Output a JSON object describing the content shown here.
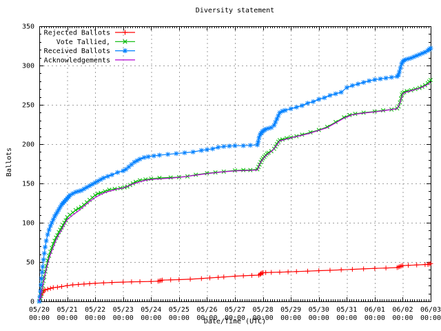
{
  "chart_data": {
    "type": "line",
    "title": "Diversity statement",
    "xlabel": "Date/Time (UTC)",
    "ylabel": "Ballots",
    "ylim": [
      0,
      350
    ],
    "grid": true,
    "legend_position": "top-left",
    "x_unit": "days since 05/20 00:00",
    "x_ticks": [
      {
        "date": "05/20",
        "time": "00:00"
      },
      {
        "date": "05/21",
        "time": "00:00"
      },
      {
        "date": "05/22",
        "time": "00:00"
      },
      {
        "date": "05/23",
        "time": "00:00"
      },
      {
        "date": "05/24",
        "time": "00:00"
      },
      {
        "date": "05/25",
        "time": "00:00"
      },
      {
        "date": "05/26",
        "time": "00:00"
      },
      {
        "date": "05/27",
        "time": "00:00"
      },
      {
        "date": "05/28",
        "time": "00:00"
      },
      {
        "date": "05/29",
        "time": "00:00"
      },
      {
        "date": "05/30",
        "time": "00:00"
      },
      {
        "date": "05/31",
        "time": "00:00"
      },
      {
        "date": "06/01",
        "time": "00:00"
      },
      {
        "date": "06/02",
        "time": "00:00"
      },
      {
        "date": "06/03",
        "time": "00:00"
      }
    ],
    "y_ticks": [
      0,
      50,
      100,
      150,
      200,
      250,
      300,
      350
    ],
    "colors": {
      "rejected": "#ff0000",
      "tallied": "#00b800",
      "received": "#0080ff",
      "acknowledgements": "#b400d3",
      "grid": "#9e9e9e",
      "axis": "#000000"
    },
    "series": [
      {
        "name": "Rejected Ballots",
        "color": "#ff0000",
        "marker": "plus",
        "x": [
          0,
          0.02,
          0.05,
          0.08,
          0.12,
          0.16,
          0.2,
          0.3,
          0.4,
          0.5,
          0.65,
          0.8,
          1.0,
          1.2,
          1.4,
          1.6,
          1.8,
          2.0,
          2.3,
          2.6,
          3.0,
          3.3,
          3.6,
          4.0,
          4.25,
          4.3,
          4.35,
          4.4,
          4.7,
          5.0,
          5.4,
          5.8,
          6.1,
          6.4,
          6.6,
          7.0,
          7.3,
          7.6,
          7.85,
          7.9,
          7.93,
          7.96,
          8.0,
          8.1,
          8.3,
          8.6,
          8.9,
          9.2,
          9.6,
          10.0,
          10.4,
          10.8,
          11.2,
          11.6,
          12.0,
          12.4,
          12.8,
          12.85,
          12.9,
          12.95,
          13.0,
          13.2,
          13.5,
          13.8,
          13.9,
          13.95,
          14.0
        ],
        "y": [
          0,
          2,
          5,
          8,
          11,
          13,
          14.5,
          15.5,
          16.5,
          17.5,
          18,
          18.8,
          20,
          21,
          21.5,
          22,
          22.5,
          23,
          23.5,
          24,
          24.5,
          24.8,
          25,
          25.3,
          25.6,
          26,
          26.5,
          27,
          27.3,
          27.6,
          28.2,
          29,
          29.8,
          30.5,
          31,
          32,
          32.5,
          33,
          33.3,
          34.3,
          35.2,
          36,
          36.3,
          36.6,
          36.8,
          37.1,
          37.5,
          37.9,
          38.4,
          39,
          39.5,
          40.1,
          40.7,
          41.3,
          41.9,
          42.4,
          43,
          43.6,
          44.3,
          45,
          45.5,
          45.8,
          46.3,
          46.8,
          47,
          47.5,
          48
        ]
      },
      {
        "name": "Vote Tallied,",
        "color": "#00b800",
        "marker": "cross",
        "x": [
          0,
          0.03,
          0.06,
          0.09,
          0.12,
          0.15,
          0.18,
          0.22,
          0.26,
          0.3,
          0.35,
          0.4,
          0.45,
          0.5,
          0.55,
          0.6,
          0.65,
          0.7,
          0.75,
          0.8,
          0.85,
          0.9,
          0.95,
          1.0,
          1.1,
          1.2,
          1.3,
          1.4,
          1.5,
          1.6,
          1.7,
          1.8,
          1.9,
          2.0,
          2.1,
          2.2,
          2.35,
          2.5,
          2.7,
          2.9,
          3.05,
          3.15,
          3.25,
          3.35,
          3.45,
          3.6,
          3.8,
          4.0,
          4.3,
          4.7,
          5.0,
          5.3,
          5.6,
          6.0,
          6.3,
          6.6,
          7.0,
          7.3,
          7.55,
          7.8,
          7.84,
          7.88,
          7.92,
          7.96,
          8.0,
          8.05,
          8.1,
          8.15,
          8.2,
          8.3,
          8.4,
          8.45,
          8.5,
          8.55,
          8.6,
          8.7,
          8.85,
          9.0,
          9.2,
          9.4,
          9.7,
          10.0,
          10.3,
          10.6,
          10.9,
          11.1,
          11.3,
          11.6,
          12.0,
          12.3,
          12.6,
          12.8,
          12.85,
          12.9,
          12.94,
          12.97,
          13.0,
          13.05,
          13.15,
          13.3,
          13.45,
          13.6,
          13.7,
          13.8,
          13.9,
          13.95,
          14.0
        ],
        "y": [
          0,
          4,
          9,
          15,
          20,
          26,
          31,
          38,
          45,
          52,
          58,
          63,
          68,
          73,
          77,
          81,
          84,
          88,
          91,
          94,
          97,
          100,
          103,
          107,
          110,
          113,
          116,
          118,
          120,
          123,
          126,
          129,
          132,
          135,
          137,
          138,
          140,
          142,
          143,
          144,
          145,
          146,
          148,
          150,
          152,
          154,
          155,
          156,
          157,
          157.5,
          158,
          159,
          161,
          163,
          164,
          165,
          166.5,
          167,
          167,
          168,
          171,
          174,
          177,
          180,
          182,
          184,
          186,
          188,
          189,
          191,
          194,
          197,
          200,
          203,
          205,
          206,
          207.5,
          208.5,
          210,
          212,
          215,
          218,
          222,
          228,
          234,
          237,
          238.5,
          240,
          241.5,
          243,
          244,
          245.5,
          248,
          253,
          258,
          263,
          265,
          266,
          267.5,
          268.5,
          270,
          271.5,
          273,
          275,
          277.5,
          279.5,
          281.5
        ]
      },
      {
        "name": "Received Ballots",
        "color": "#0080ff",
        "marker": "asterisk",
        "x": [
          0,
          0.02,
          0.04,
          0.06,
          0.08,
          0.1,
          0.12,
          0.15,
          0.18,
          0.21,
          0.25,
          0.3,
          0.35,
          0.4,
          0.45,
          0.5,
          0.55,
          0.6,
          0.65,
          0.7,
          0.75,
          0.8,
          0.85,
          0.9,
          0.95,
          1.0,
          1.05,
          1.1,
          1.2,
          1.3,
          1.4,
          1.5,
          1.6,
          1.7,
          1.8,
          1.9,
          2.0,
          2.1,
          2.2,
          2.3,
          2.45,
          2.6,
          2.8,
          3.0,
          3.1,
          3.2,
          3.3,
          3.4,
          3.5,
          3.6,
          3.75,
          3.9,
          4.1,
          4.3,
          4.6,
          4.9,
          5.2,
          5.5,
          5.8,
          6.0,
          6.2,
          6.4,
          6.6,
          6.8,
          7.0,
          7.3,
          7.55,
          7.8,
          7.83,
          7.86,
          7.9,
          7.94,
          7.98,
          8.02,
          8.06,
          8.1,
          8.2,
          8.3,
          8.4,
          8.45,
          8.5,
          8.55,
          8.6,
          8.7,
          8.8,
          9.0,
          9.2,
          9.4,
          9.6,
          9.8,
          10.0,
          10.2,
          10.4,
          10.6,
          10.8,
          11.0,
          11.2,
          11.4,
          11.6,
          11.8,
          12.0,
          12.2,
          12.4,
          12.6,
          12.8,
          12.85,
          12.88,
          12.92,
          12.96,
          13.0,
          13.05,
          13.1,
          13.2,
          13.3,
          13.4,
          13.5,
          13.6,
          13.7,
          13.8,
          13.9,
          13.95,
          14.0
        ],
        "y": [
          0,
          6,
          13,
          21,
          29,
          37,
          44,
          53,
          61,
          69,
          77,
          85,
          91,
          96,
          100,
          104,
          108,
          111,
          114,
          117,
          120,
          123,
          125,
          127,
          129,
          131,
          133,
          135,
          137,
          139,
          140,
          141,
          143,
          145,
          147,
          149,
          151,
          153,
          155,
          157,
          159,
          161,
          164,
          166,
          168,
          171,
          174,
          177,
          179,
          181,
          183,
          184,
          185,
          186,
          187,
          188,
          189,
          190,
          192,
          193,
          194,
          196,
          197,
          197.5,
          198,
          198,
          198.5,
          199,
          203,
          208,
          212,
          214,
          216,
          217,
          218,
          219,
          220,
          221,
          224,
          228,
          232,
          236,
          240,
          242,
          243,
          245,
          247,
          249,
          252,
          254,
          257,
          259,
          262,
          264,
          266,
          272,
          274.5,
          276.5,
          278.5,
          280.5,
          282,
          283,
          284,
          285,
          286,
          288,
          292,
          297,
          302,
          305,
          306.5,
          307.5,
          308.5,
          309.5,
          311,
          312.5,
          314,
          315.5,
          317,
          319,
          320.5,
          322
        ]
      },
      {
        "name": "Acknowledgements",
        "color": "#b400d3",
        "marker": "none",
        "x": [
          0,
          0.05,
          0.1,
          0.15,
          0.2,
          0.3,
          0.4,
          0.5,
          0.6,
          0.7,
          0.8,
          0.9,
          1.0,
          1.2,
          1.4,
          1.6,
          1.8,
          2.0,
          2.2,
          2.4,
          2.6,
          2.8,
          3.0,
          3.2,
          3.4,
          3.6,
          3.8,
          4.0,
          4.4,
          4.8,
          5.2,
          5.6,
          6.0,
          6.5,
          7.0,
          7.5,
          7.8,
          7.9,
          8.0,
          8.1,
          8.2,
          8.35,
          8.5,
          8.6,
          8.8,
          9.0,
          9.3,
          9.6,
          10.0,
          10.3,
          10.6,
          10.9,
          11.2,
          11.6,
          12.0,
          12.4,
          12.8,
          12.9,
          13.0,
          13.1,
          13.3,
          13.5,
          13.7,
          13.9,
          14.0
        ],
        "y": [
          0,
          7,
          16,
          25,
          33,
          48,
          60,
          69,
          78,
          85,
          91,
          98,
          104,
          110,
          115,
          121,
          127,
          132,
          136,
          139,
          141,
          143,
          144,
          147,
          150,
          152,
          154,
          155,
          156,
          157,
          158.5,
          160.5,
          162.5,
          164.5,
          166,
          166.5,
          167,
          176,
          181,
          185,
          188,
          192,
          199,
          204,
          206,
          208,
          210.5,
          213,
          217.5,
          221,
          227,
          233,
          237.5,
          239.5,
          241,
          243,
          245,
          252,
          264,
          266,
          268,
          270,
          272.5,
          276,
          278.5
        ]
      }
    ]
  }
}
